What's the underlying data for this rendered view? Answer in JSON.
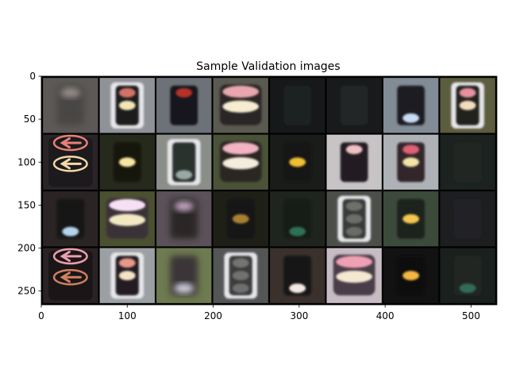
{
  "chart_data": {
    "type": "image-grid",
    "title": "Sample Validation images",
    "grid": false,
    "xlim": [
      0,
      530
    ],
    "ylim": [
      266,
      0
    ],
    "x_ticks": [
      0,
      100,
      200,
      300,
      400,
      500
    ],
    "y_ticks": [
      0,
      50,
      100,
      150,
      200,
      250
    ],
    "grid_rows": 4,
    "grid_cols": 8,
    "tile_size": 64,
    "tile_padding": 2,
    "tiles": [
      {
        "kind": "blurry",
        "bg": "#5c5956",
        "housing": "#4a4644",
        "lights": [
          "#9a8f8c",
          null,
          null
        ]
      },
      {
        "kind": "framed",
        "bg": "#8f9398",
        "housing": "#1c1a1e",
        "lights": [
          "#d4726a",
          "#f2e6b6",
          null
        ]
      },
      {
        "kind": "normal",
        "bg": "#6d7278",
        "housing": "#17141a",
        "lights": [
          "#b53028",
          null,
          null
        ]
      },
      {
        "kind": "wide",
        "bg": "#5b5a50",
        "housing": "#2a2827",
        "lights": [
          "#e8a6b0",
          "#f6ecd0",
          null
        ]
      },
      {
        "kind": "dark",
        "bg": "#16181a",
        "housing": "#1f2224",
        "lights": [
          null,
          null,
          null
        ]
      },
      {
        "kind": "dark",
        "bg": "#181a1c",
        "housing": "#242628",
        "lights": [
          null,
          null,
          null
        ]
      },
      {
        "kind": "normal",
        "bg": "#828c96",
        "housing": "#1a1c24",
        "lights": [
          null,
          null,
          "#c8dcf4"
        ]
      },
      {
        "kind": "framed",
        "bg": "#5c5c3e",
        "housing": "#22201e",
        "lights": [
          "#e890a0",
          "#f4dcc0",
          null
        ]
      },
      {
        "kind": "arrows",
        "bg": "#2a2428",
        "housing": "#1c1a1c",
        "lights": [
          "#e8807a",
          "#f4d8a8",
          null
        ]
      },
      {
        "kind": "normal",
        "bg": "#262a1c",
        "housing": "#141610",
        "lights": [
          null,
          "#f6e8a0",
          null
        ]
      },
      {
        "kind": "framed",
        "bg": "#8a8e88",
        "housing": "#2c302e",
        "lights": [
          null,
          null,
          "#9aa8a4"
        ]
      },
      {
        "kind": "wide",
        "bg": "#4a5238",
        "housing": "#2a2624",
        "lights": [
          "#f2b4c4",
          "#f4ecdc",
          null
        ]
      },
      {
        "kind": "normal",
        "bg": "#1a1c1a",
        "housing": "#121412",
        "lights": [
          null,
          "#f0c030",
          null
        ]
      },
      {
        "kind": "normal",
        "bg": "#c8c4c6",
        "housing": "#221c22",
        "lights": [
          "#f0c0c4",
          null,
          null
        ]
      },
      {
        "kind": "normal",
        "bg": "#aeb2b6",
        "housing": "#30282c",
        "lights": [
          "#e06074",
          "#f4e4a8",
          null
        ]
      },
      {
        "kind": "dark",
        "bg": "#1c2220",
        "housing": "#202624",
        "lights": [
          null,
          null,
          null
        ]
      },
      {
        "kind": "normal",
        "bg": "#2a2424",
        "housing": "#141214",
        "lights": [
          null,
          null,
          "#b4d4ec"
        ]
      },
      {
        "kind": "wide",
        "bg": "#4a5030",
        "housing": "#3a3238",
        "lights": [
          "#f8e0f4",
          "#f2e8c4",
          null
        ]
      },
      {
        "kind": "blurry",
        "bg": "#5a5258",
        "housing": "#2a2628",
        "lights": [
          "#c8a8c4",
          null,
          null
        ]
      },
      {
        "kind": "dark",
        "bg": "#1e2018",
        "housing": "#141612",
        "lights": [
          null,
          "#a88030",
          null
        ]
      },
      {
        "kind": "dark",
        "bg": "#20241e",
        "housing": "#181c18",
        "lights": [
          null,
          null,
          "#2e7058"
        ]
      },
      {
        "kind": "framed",
        "bg": "#4c4e4a",
        "housing": "#383a38",
        "lights": [
          "#6e706c",
          "#6c6e6a",
          "#6a6c68"
        ]
      },
      {
        "kind": "normal",
        "bg": "#3c4a3c",
        "housing": "#1e241e",
        "lights": [
          null,
          "#f4c850",
          null
        ]
      },
      {
        "kind": "dark",
        "bg": "#1c1e20",
        "housing": "#222426",
        "lights": [
          null,
          null,
          null
        ]
      },
      {
        "kind": "arrows",
        "bg": "#2a2224",
        "housing": "#1a1618",
        "lights": [
          "#ec9eb0",
          "#d08060",
          null
        ]
      },
      {
        "kind": "framed",
        "bg": "#9ca0a2",
        "housing": "#221e22",
        "lights": [
          "#e89888",
          "#f4e4c4",
          null
        ]
      },
      {
        "kind": "blurry",
        "bg": "#6e7a50",
        "housing": "#3a3638",
        "lights": [
          null,
          null,
          "#d4d4e4"
        ]
      },
      {
        "kind": "framed",
        "bg": "#545656",
        "housing": "#3c3e3e",
        "lights": [
          "#727472",
          "#707270",
          "#6e706e"
        ]
      },
      {
        "kind": "dark",
        "bg": "#3a302c",
        "housing": "#141214",
        "lights": [
          null,
          null,
          "#f4e8e0"
        ]
      },
      {
        "kind": "wide",
        "bg": "#c8bcc4",
        "housing": "#4a3c48",
        "lights": [
          "#f0a0b4",
          "#f4e8d0",
          null
        ]
      },
      {
        "kind": "normal",
        "bg": "#121212",
        "housing": "#0e0e0e",
        "lights": [
          null,
          "#f4b840",
          null
        ]
      },
      {
        "kind": "dark",
        "bg": "#1a201e",
        "housing": "#202624",
        "lights": [
          null,
          null,
          "#306c58"
        ]
      }
    ]
  }
}
